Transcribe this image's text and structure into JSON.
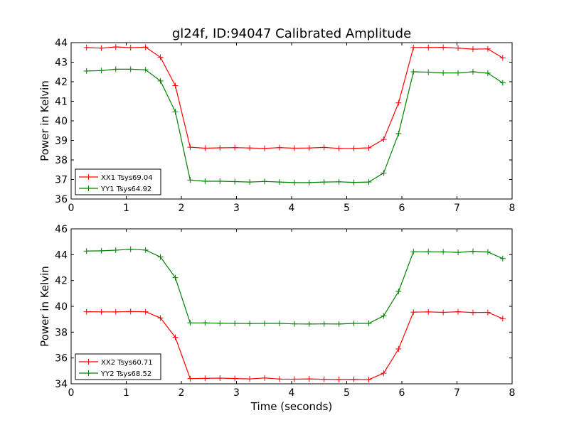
{
  "title": "gl24f, ID:94047 Calibrated Amplitude",
  "chart_data": [
    {
      "type": "line",
      "xlabel": "",
      "ylabel": "Power in Kelvin",
      "xlim": [
        0,
        8
      ],
      "ylim": [
        36,
        44
      ],
      "xticks": [
        0,
        1,
        2,
        3,
        4,
        5,
        6,
        7,
        8
      ],
      "yticks": [
        36,
        37,
        38,
        39,
        40,
        41,
        42,
        43,
        44
      ],
      "x": [
        0.28,
        0.55,
        0.81,
        1.08,
        1.35,
        1.62,
        1.89,
        2.16,
        2.43,
        2.7,
        2.97,
        3.24,
        3.51,
        3.78,
        4.05,
        4.32,
        4.59,
        4.86,
        5.13,
        5.4,
        5.67,
        5.94,
        6.21,
        6.48,
        6.75,
        7.02,
        7.29,
        7.56,
        7.83
      ],
      "legend_position": "lower-left",
      "series": [
        {
          "name": "XX1 Tsys69.04",
          "color": "#ff0000",
          "values": [
            43.75,
            43.72,
            43.78,
            43.74,
            43.77,
            43.25,
            41.8,
            38.65,
            38.6,
            38.62,
            38.63,
            38.61,
            38.59,
            38.63,
            38.6,
            38.61,
            38.64,
            38.59,
            38.59,
            38.62,
            39.05,
            40.92,
            43.75,
            43.75,
            43.76,
            43.72,
            43.67,
            43.68,
            43.22
          ]
        },
        {
          "name": "YY1 Tsys64.92",
          "color": "#008000",
          "values": [
            42.55,
            42.57,
            42.64,
            42.64,
            42.61,
            42.04,
            40.46,
            36.97,
            36.91,
            36.91,
            36.89,
            36.87,
            36.9,
            36.87,
            36.84,
            36.84,
            36.87,
            36.88,
            36.85,
            36.87,
            37.33,
            39.35,
            42.51,
            42.49,
            42.45,
            42.45,
            42.51,
            42.44,
            41.94
          ]
        }
      ]
    },
    {
      "type": "line",
      "xlabel": "Time (seconds)",
      "ylabel": "Power in Kelvin",
      "xlim": [
        0,
        8
      ],
      "ylim": [
        34,
        46
      ],
      "xticks": [
        0,
        1,
        2,
        3,
        4,
        5,
        6,
        7,
        8
      ],
      "yticks": [
        34,
        36,
        38,
        40,
        42,
        44,
        46
      ],
      "x": [
        0.28,
        0.55,
        0.81,
        1.08,
        1.35,
        1.62,
        1.89,
        2.16,
        2.43,
        2.7,
        2.97,
        3.24,
        3.51,
        3.78,
        4.05,
        4.32,
        4.59,
        4.86,
        5.13,
        5.4,
        5.67,
        5.94,
        6.21,
        6.48,
        6.75,
        7.02,
        7.29,
        7.56,
        7.83
      ],
      "legend_position": "lower-left",
      "series": [
        {
          "name": "XX2 Tsys60.71",
          "color": "#ff0000",
          "values": [
            39.58,
            39.57,
            39.57,
            39.6,
            39.58,
            39.1,
            37.6,
            34.4,
            34.42,
            34.44,
            34.41,
            34.38,
            34.45,
            34.37,
            34.36,
            34.38,
            34.35,
            34.34,
            34.35,
            34.33,
            34.82,
            36.7,
            39.55,
            39.57,
            39.53,
            39.58,
            39.52,
            39.53,
            39.05
          ]
        },
        {
          "name": "YY2 Tsys68.52",
          "color": "#008000",
          "values": [
            44.28,
            44.3,
            44.35,
            44.42,
            44.36,
            43.82,
            42.22,
            38.72,
            38.72,
            38.69,
            38.68,
            38.67,
            38.68,
            38.68,
            38.64,
            38.63,
            38.64,
            38.63,
            38.68,
            38.68,
            39.26,
            41.15,
            44.23,
            44.23,
            44.22,
            44.18,
            44.26,
            44.21,
            43.7
          ]
        }
      ]
    }
  ]
}
